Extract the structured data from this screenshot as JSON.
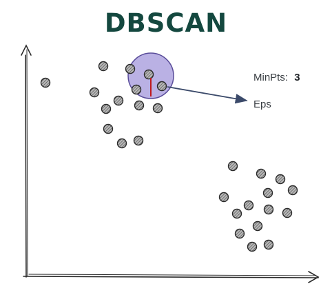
{
  "title": "DBSCAN",
  "colors": {
    "title": "#14483f",
    "axis": "#2b2b2b",
    "point_fill": "#9a9a9a",
    "point_stroke": "#2a2a2a",
    "eps_fill": "#a79bdc",
    "eps_stroke": "#5a4d9a",
    "radius_line": "#c0181c",
    "arrow": "#3b4a6a",
    "label": "#3a3f44"
  },
  "annotations": {
    "minpts_label": "MinPts:",
    "minpts_value": "3",
    "eps_label": "Eps"
  }
}
